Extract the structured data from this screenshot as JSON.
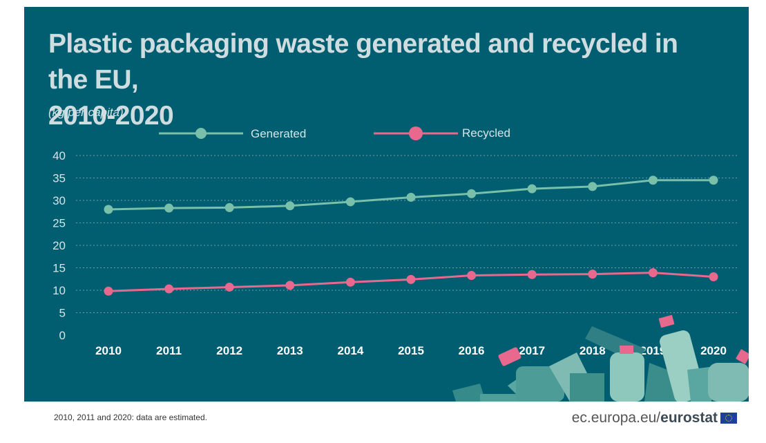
{
  "title_line1": "Plastic packaging waste generated and recycled in the EU,",
  "title_line2": "2010-2020",
  "unit": "(kg per capita)",
  "footnote": "2010, 2011 and 2020: data are estimated.",
  "brand_prefix": "ec.europa.eu/",
  "brand_name": "eurostat",
  "colors": {
    "background": "#015e70",
    "generated": "#78c0aa",
    "recycled": "#e8688e",
    "text": "#d6e4e7"
  },
  "chart_data": {
    "type": "line",
    "x": [
      "2010",
      "2011",
      "2012",
      "2013",
      "2014",
      "2015",
      "2016",
      "2017",
      "2018",
      "2019",
      "2020"
    ],
    "series": [
      {
        "name": "Generated",
        "values": [
          28.0,
          28.3,
          28.4,
          28.8,
          29.7,
          30.7,
          31.5,
          32.6,
          33.1,
          34.5,
          34.5
        ]
      },
      {
        "name": "Recycled",
        "values": [
          9.8,
          10.3,
          10.7,
          11.1,
          11.8,
          12.4,
          13.3,
          13.5,
          13.6,
          13.9,
          13.0
        ]
      }
    ],
    "ylim": [
      0,
      40
    ],
    "yticks": [
      "0",
      "5",
      "10",
      "15",
      "20",
      "25",
      "30",
      "35",
      "40"
    ],
    "grid": true,
    "legend_position": "top"
  }
}
